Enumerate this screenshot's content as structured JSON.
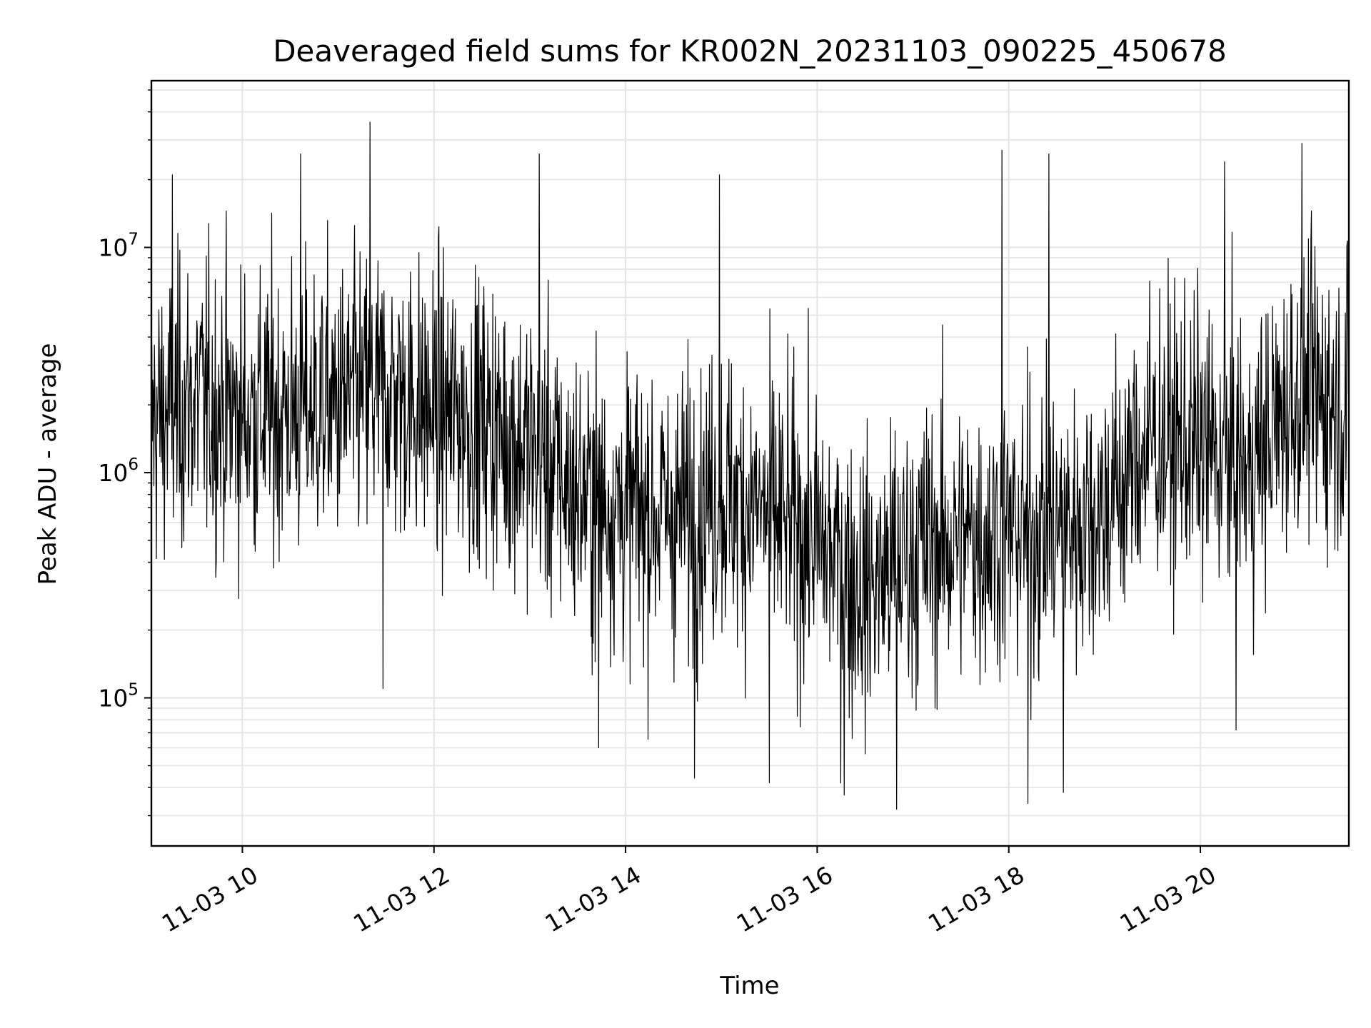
{
  "chart_data": {
    "type": "line",
    "title": "Deaveraged field sums for KR002N_20231103_090225_450678",
    "xlabel": "Time",
    "ylabel": "Peak ADU - average",
    "yscale": "log",
    "ylim": [
      22000,
      55000000
    ],
    "xlim": [
      "11-03 09:03",
      "11-03 21:33"
    ],
    "grid": true,
    "line_color": "#000000",
    "grid_color": "#e6e6e6",
    "x_ticks": [
      {
        "label": "11-03 10",
        "hour": 10
      },
      {
        "label": "11-03 12",
        "hour": 12
      },
      {
        "label": "11-03 14",
        "hour": 14
      },
      {
        "label": "11-03 16",
        "hour": 16
      },
      {
        "label": "11-03 18",
        "hour": 18
      },
      {
        "label": "11-03 20",
        "hour": 20
      }
    ],
    "y_ticks": [
      {
        "base": "10",
        "exp": "5",
        "value": 100000
      },
      {
        "base": "10",
        "exp": "6",
        "value": 1000000
      },
      {
        "base": "10",
        "exp": "7",
        "value": 10000000
      }
    ],
    "series_profile": {
      "hours": [
        9.05,
        9.5,
        10.0,
        10.5,
        11.0,
        11.5,
        12.0,
        12.5,
        13.0,
        13.5,
        14.0,
        14.5,
        15.0,
        15.5,
        16.0,
        16.5,
        17.0,
        17.5,
        18.0,
        18.5,
        19.0,
        19.5,
        20.0,
        20.5,
        21.0,
        21.55
      ],
      "median": [
        1700000,
        2100000,
        1800000,
        1900000,
        2000000,
        2300000,
        1900000,
        1700000,
        1300000,
        800000,
        700000,
        650000,
        800000,
        650000,
        500000,
        300000,
        450000,
        500000,
        550000,
        550000,
        700000,
        1400000,
        1300000,
        1000000,
        2300000,
        2000000
      ],
      "peaks": [
        {
          "hour": 9.27,
          "value": 21000000
        },
        {
          "hour": 10.61,
          "value": 26000000
        },
        {
          "hour": 11.33,
          "value": 36000000
        },
        {
          "hour": 13.1,
          "value": 26000000
        },
        {
          "hour": 14.98,
          "value": 21000000
        },
        {
          "hour": 17.93,
          "value": 27000000
        },
        {
          "hour": 18.42,
          "value": 26000000
        },
        {
          "hour": 20.25,
          "value": 24000000
        },
        {
          "hour": 21.06,
          "value": 29000000
        }
      ],
      "troughs": [
        {
          "hour": 11.47,
          "value": 110000
        },
        {
          "hour": 13.72,
          "value": 60000
        },
        {
          "hour": 14.72,
          "value": 44000
        },
        {
          "hour": 15.5,
          "value": 42000
        },
        {
          "hour": 16.28,
          "value": 37000
        },
        {
          "hour": 16.83,
          "value": 32000
        },
        {
          "hour": 18.2,
          "value": 34000
        },
        {
          "hour": 18.57,
          "value": 38000
        },
        {
          "hour": 20.37,
          "value": 72000
        }
      ]
    }
  }
}
